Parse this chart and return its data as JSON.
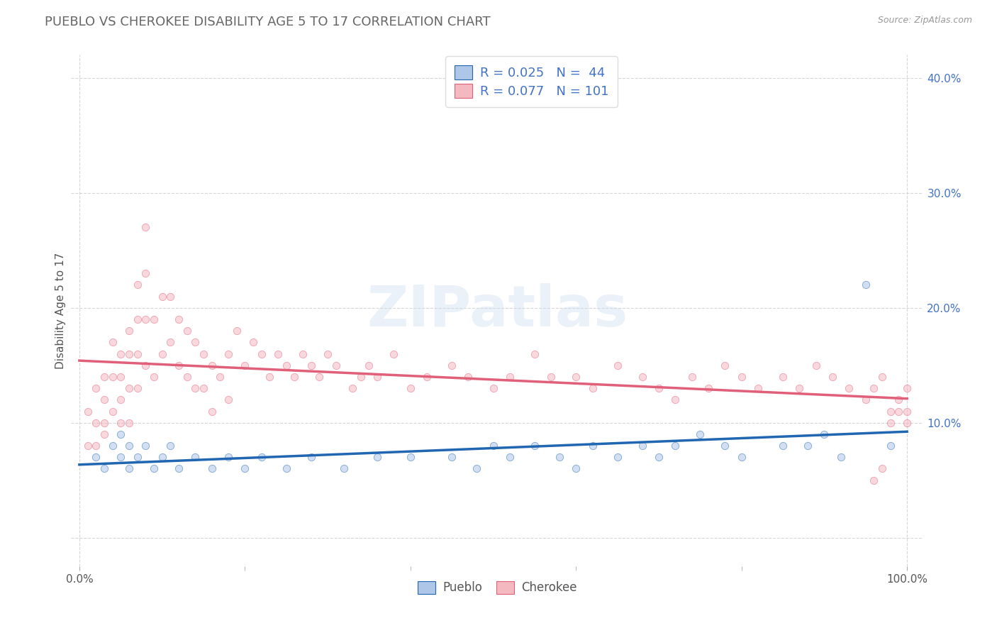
{
  "title": "PUEBLO VS CHEROKEE DISABILITY AGE 5 TO 17 CORRELATION CHART",
  "source": "Source: ZipAtlas.com",
  "ylabel": "Disability Age 5 to 17",
  "title_color": "#666666",
  "title_fontsize": 13,
  "background_color": "#ffffff",
  "grid_color": "#cccccc",
  "pueblo_color": "#aec6e8",
  "cherokee_color": "#f4b8c1",
  "pueblo_line_color": "#2066b0",
  "cherokee_line_color": "#e0607a",
  "legend_r_pueblo": "R = 0.025",
  "legend_n_pueblo": "N =  44",
  "legend_r_cherokee": "R = 0.077",
  "legend_n_cherokee": "N = 101",
  "watermark": "ZIPatlas",
  "scatter_size": 55,
  "scatter_alpha": 0.55,
  "line_width": 2.5,
  "pueblo_x": [
    2,
    3,
    4,
    5,
    5,
    6,
    6,
    7,
    8,
    9,
    10,
    11,
    12,
    14,
    16,
    18,
    20,
    22,
    25,
    28,
    32,
    36,
    40,
    45,
    48,
    50,
    52,
    55,
    58,
    60,
    62,
    65,
    68,
    70,
    72,
    75,
    78,
    80,
    85,
    88,
    90,
    92,
    95,
    98
  ],
  "pueblo_y": [
    7,
    6,
    8,
    7,
    9,
    8,
    6,
    7,
    8,
    6,
    7,
    8,
    6,
    7,
    6,
    7,
    6,
    7,
    6,
    7,
    6,
    7,
    7,
    7,
    6,
    8,
    7,
    8,
    7,
    6,
    8,
    7,
    8,
    7,
    8,
    9,
    8,
    7,
    8,
    8,
    9,
    7,
    22,
    8
  ],
  "cherokee_x": [
    1,
    1,
    2,
    2,
    2,
    3,
    3,
    3,
    3,
    4,
    4,
    4,
    5,
    5,
    5,
    5,
    6,
    6,
    6,
    6,
    7,
    7,
    7,
    7,
    8,
    8,
    8,
    8,
    9,
    9,
    10,
    10,
    11,
    11,
    12,
    12,
    13,
    13,
    14,
    14,
    15,
    15,
    16,
    16,
    17,
    18,
    18,
    19,
    20,
    21,
    22,
    23,
    24,
    25,
    26,
    27,
    28,
    29,
    30,
    31,
    33,
    34,
    35,
    36,
    38,
    40,
    42,
    45,
    47,
    50,
    52,
    55,
    57,
    60,
    62,
    65,
    68,
    70,
    72,
    74,
    76,
    78,
    80,
    82,
    85,
    87,
    89,
    91,
    93,
    95,
    96,
    97,
    98,
    99,
    100,
    100,
    100,
    99,
    98,
    97,
    96
  ],
  "cherokee_y": [
    11,
    8,
    13,
    10,
    8,
    14,
    12,
    10,
    9,
    17,
    14,
    11,
    16,
    14,
    12,
    10,
    18,
    16,
    13,
    10,
    22,
    19,
    16,
    13,
    27,
    23,
    19,
    15,
    19,
    14,
    21,
    16,
    21,
    17,
    19,
    15,
    18,
    14,
    17,
    13,
    16,
    13,
    15,
    11,
    14,
    16,
    12,
    18,
    15,
    17,
    16,
    14,
    16,
    15,
    14,
    16,
    15,
    14,
    16,
    15,
    13,
    14,
    15,
    14,
    16,
    13,
    14,
    15,
    14,
    13,
    14,
    16,
    14,
    14,
    13,
    15,
    14,
    13,
    12,
    14,
    13,
    15,
    14,
    13,
    14,
    13,
    15,
    14,
    13,
    12,
    13,
    14,
    11,
    12,
    11,
    13,
    10,
    11,
    10,
    6,
    5
  ]
}
